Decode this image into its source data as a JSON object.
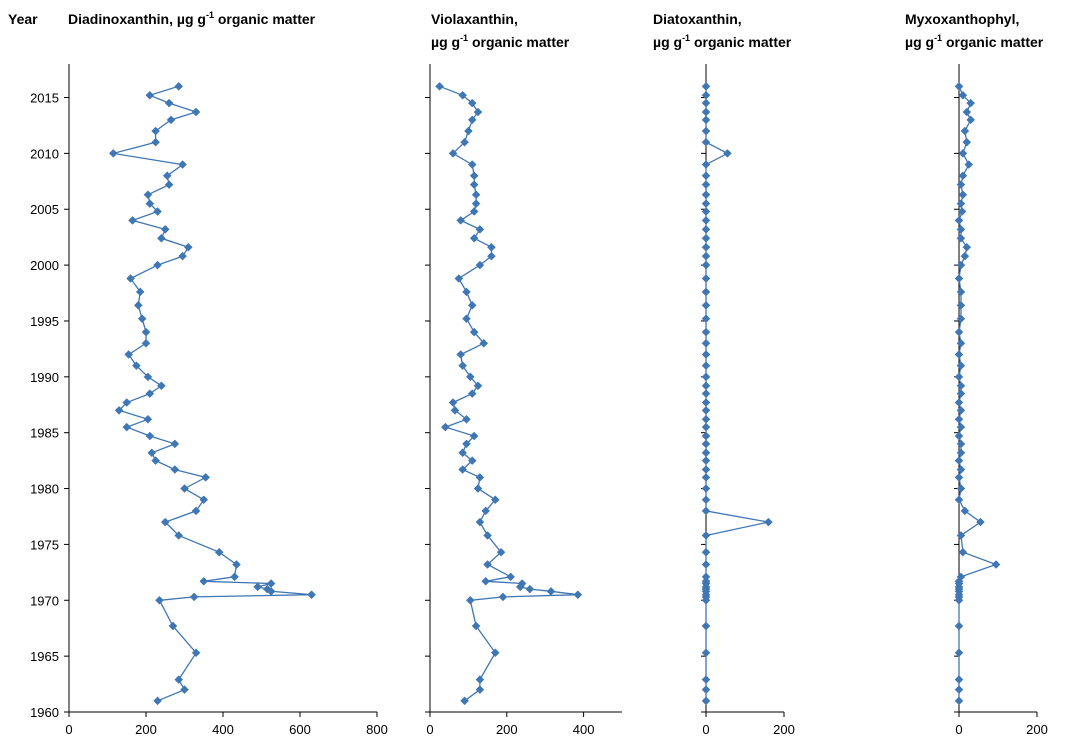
{
  "chart_data": [
    {
      "type": "line",
      "orientation": "depth-profile",
      "title": "Diadinoxanthin, µg g-1 organic matter",
      "title_parts": {
        "line1_pre": "Diadinoxanthin, µg g",
        "sup": "-1",
        "line1_post": " organic matter"
      },
      "xlim": [
        0,
        800
      ],
      "xticks": [
        0,
        200,
        400,
        600,
        800
      ],
      "ylim": [
        1960,
        2018
      ],
      "yticks": [
        1960,
        1965,
        1970,
        1975,
        1980,
        1985,
        1990,
        1995,
        2000,
        2005,
        2010,
        2015
      ],
      "y_axis_title": "Year",
      "points": [
        {
          "y": 2016,
          "x": 285
        },
        {
          "y": 2015.2,
          "x": 210
        },
        {
          "y": 2014.5,
          "x": 260
        },
        {
          "y": 2013.7,
          "x": 330
        },
        {
          "y": 2013,
          "x": 265
        },
        {
          "y": 2012,
          "x": 225
        },
        {
          "y": 2011,
          "x": 225
        },
        {
          "y": 2010,
          "x": 115
        },
        {
          "y": 2009,
          "x": 295
        },
        {
          "y": 2008,
          "x": 255
        },
        {
          "y": 2007.2,
          "x": 260
        },
        {
          "y": 2006.3,
          "x": 205
        },
        {
          "y": 2005.5,
          "x": 210
        },
        {
          "y": 2004.8,
          "x": 230
        },
        {
          "y": 2004,
          "x": 165
        },
        {
          "y": 2003.2,
          "x": 250
        },
        {
          "y": 2002.4,
          "x": 240
        },
        {
          "y": 2001.6,
          "x": 310
        },
        {
          "y": 2000.8,
          "x": 295
        },
        {
          "y": 2000,
          "x": 230
        },
        {
          "y": 1998.8,
          "x": 160
        },
        {
          "y": 1997.6,
          "x": 185
        },
        {
          "y": 1996.4,
          "x": 180
        },
        {
          "y": 1995.2,
          "x": 190
        },
        {
          "y": 1994,
          "x": 200
        },
        {
          "y": 1993,
          "x": 200
        },
        {
          "y": 1992,
          "x": 155
        },
        {
          "y": 1991,
          "x": 175
        },
        {
          "y": 1990,
          "x": 205
        },
        {
          "y": 1989.2,
          "x": 240
        },
        {
          "y": 1988.5,
          "x": 210
        },
        {
          "y": 1987.7,
          "x": 150
        },
        {
          "y": 1987,
          "x": 130
        },
        {
          "y": 1986.2,
          "x": 205
        },
        {
          "y": 1985.5,
          "x": 150
        },
        {
          "y": 1984.7,
          "x": 210
        },
        {
          "y": 1984,
          "x": 275
        },
        {
          "y": 1983.2,
          "x": 215
        },
        {
          "y": 1982.5,
          "x": 225
        },
        {
          "y": 1981.7,
          "x": 275
        },
        {
          "y": 1981,
          "x": 355
        },
        {
          "y": 1980,
          "x": 300
        },
        {
          "y": 1979,
          "x": 350
        },
        {
          "y": 1978,
          "x": 330
        },
        {
          "y": 1977,
          "x": 250
        },
        {
          "y": 1975.8,
          "x": 285
        },
        {
          "y": 1974.3,
          "x": 390
        },
        {
          "y": 1973.2,
          "x": 435
        },
        {
          "y": 1972.1,
          "x": 430
        },
        {
          "y": 1971.7,
          "x": 350
        },
        {
          "y": 1971.5,
          "x": 525
        },
        {
          "y": 1971.2,
          "x": 490
        },
        {
          "y": 1971,
          "x": 515
        },
        {
          "y": 1970.8,
          "x": 525
        },
        {
          "y": 1970.5,
          "x": 630
        },
        {
          "y": 1970.3,
          "x": 325
        },
        {
          "y": 1970,
          "x": 235
        },
        {
          "y": 1967.7,
          "x": 270
        },
        {
          "y": 1965.3,
          "x": 330
        },
        {
          "y": 1962.9,
          "x": 285
        },
        {
          "y": 1962,
          "x": 300
        },
        {
          "y": 1961,
          "x": 230
        }
      ]
    },
    {
      "type": "line",
      "orientation": "depth-profile",
      "title": "Violaxanthin, µg g-1 organic matter",
      "title_parts": {
        "line1": "Violaxanthin,",
        "line2_pre": "µg g",
        "sup": "-1",
        "line2_post": " organic matter"
      },
      "xlim": [
        0,
        500
      ],
      "xticks": [
        0,
        200,
        400
      ],
      "ylim": [
        1960,
        2018
      ],
      "points": [
        {
          "y": 2016,
          "x": 25
        },
        {
          "y": 2015.2,
          "x": 85
        },
        {
          "y": 2014.5,
          "x": 110
        },
        {
          "y": 2013.7,
          "x": 125
        },
        {
          "y": 2013,
          "x": 110
        },
        {
          "y": 2012,
          "x": 100
        },
        {
          "y": 2011,
          "x": 90
        },
        {
          "y": 2010,
          "x": 60
        },
        {
          "y": 2009,
          "x": 110
        },
        {
          "y": 2008,
          "x": 115
        },
        {
          "y": 2007.2,
          "x": 115
        },
        {
          "y": 2006.3,
          "x": 120
        },
        {
          "y": 2005.5,
          "x": 120
        },
        {
          "y": 2004.8,
          "x": 115
        },
        {
          "y": 2004,
          "x": 80
        },
        {
          "y": 2003.2,
          "x": 130
        },
        {
          "y": 2002.4,
          "x": 115
        },
        {
          "y": 2001.6,
          "x": 160
        },
        {
          "y": 2000.8,
          "x": 160
        },
        {
          "y": 2000,
          "x": 130
        },
        {
          "y": 1998.8,
          "x": 75
        },
        {
          "y": 1997.6,
          "x": 95
        },
        {
          "y": 1996.4,
          "x": 110
        },
        {
          "y": 1995.2,
          "x": 95
        },
        {
          "y": 1994,
          "x": 115
        },
        {
          "y": 1993,
          "x": 140
        },
        {
          "y": 1992,
          "x": 80
        },
        {
          "y": 1991,
          "x": 85
        },
        {
          "y": 1990,
          "x": 105
        },
        {
          "y": 1989.2,
          "x": 125
        },
        {
          "y": 1988.5,
          "x": 110
        },
        {
          "y": 1987.7,
          "x": 60
        },
        {
          "y": 1987,
          "x": 65
        },
        {
          "y": 1986.2,
          "x": 95
        },
        {
          "y": 1985.5,
          "x": 40
        },
        {
          "y": 1984.7,
          "x": 115
        },
        {
          "y": 1984,
          "x": 95
        },
        {
          "y": 1983.2,
          "x": 85
        },
        {
          "y": 1982.5,
          "x": 110
        },
        {
          "y": 1981.7,
          "x": 85
        },
        {
          "y": 1981,
          "x": 130
        },
        {
          "y": 1980,
          "x": 125
        },
        {
          "y": 1979,
          "x": 170
        },
        {
          "y": 1978,
          "x": 145
        },
        {
          "y": 1977,
          "x": 130
        },
        {
          "y": 1975.8,
          "x": 150
        },
        {
          "y": 1974.3,
          "x": 185
        },
        {
          "y": 1973.2,
          "x": 150
        },
        {
          "y": 1972.1,
          "x": 210
        },
        {
          "y": 1971.7,
          "x": 145
        },
        {
          "y": 1971.5,
          "x": 240
        },
        {
          "y": 1971.2,
          "x": 235
        },
        {
          "y": 1971,
          "x": 260
        },
        {
          "y": 1970.8,
          "x": 315
        },
        {
          "y": 1970.5,
          "x": 385
        },
        {
          "y": 1970.3,
          "x": 190
        },
        {
          "y": 1970,
          "x": 105
        },
        {
          "y": 1967.7,
          "x": 120
        },
        {
          "y": 1965.3,
          "x": 170
        },
        {
          "y": 1962.9,
          "x": 130
        },
        {
          "y": 1962,
          "x": 130
        },
        {
          "y": 1961,
          "x": 90
        }
      ]
    },
    {
      "type": "line",
      "orientation": "depth-profile",
      "title": "Diatoxanthin, µg g-1 organic matter",
      "title_parts": {
        "line1": "Diatoxanthin,",
        "line2_pre": "µg g",
        "sup": "-1",
        "line2_post": " organic matter"
      },
      "xlim": [
        0,
        200
      ],
      "xticks": [
        0,
        200
      ],
      "ylim": [
        1960,
        2018
      ],
      "points": [
        {
          "y": 2016,
          "x": 0
        },
        {
          "y": 2015.2,
          "x": 0
        },
        {
          "y": 2014.5,
          "x": 0
        },
        {
          "y": 2013.7,
          "x": 0
        },
        {
          "y": 2013,
          "x": 0
        },
        {
          "y": 2012,
          "x": 0
        },
        {
          "y": 2011,
          "x": 0
        },
        {
          "y": 2010,
          "x": 55
        },
        {
          "y": 2009,
          "x": 0
        },
        {
          "y": 2008,
          "x": 0
        },
        {
          "y": 2007.2,
          "x": 0
        },
        {
          "y": 2006.3,
          "x": 0
        },
        {
          "y": 2005.5,
          "x": 0
        },
        {
          "y": 2004.8,
          "x": 0
        },
        {
          "y": 2004,
          "x": 0
        },
        {
          "y": 2003.2,
          "x": 0
        },
        {
          "y": 2002.4,
          "x": 0
        },
        {
          "y": 2001.6,
          "x": 0
        },
        {
          "y": 2000.8,
          "x": 0
        },
        {
          "y": 2000,
          "x": 0
        },
        {
          "y": 1998.8,
          "x": 0
        },
        {
          "y": 1997.6,
          "x": 0
        },
        {
          "y": 1996.4,
          "x": 0
        },
        {
          "y": 1995.2,
          "x": 0
        },
        {
          "y": 1994,
          "x": 0
        },
        {
          "y": 1993,
          "x": 0
        },
        {
          "y": 1992,
          "x": 0
        },
        {
          "y": 1991,
          "x": 0
        },
        {
          "y": 1990,
          "x": 0
        },
        {
          "y": 1989.2,
          "x": 0
        },
        {
          "y": 1988.5,
          "x": 0
        },
        {
          "y": 1987.7,
          "x": 0
        },
        {
          "y": 1987,
          "x": 0
        },
        {
          "y": 1986.2,
          "x": 0
        },
        {
          "y": 1985.5,
          "x": 0
        },
        {
          "y": 1984.7,
          "x": 0
        },
        {
          "y": 1984,
          "x": 0
        },
        {
          "y": 1983.2,
          "x": 0
        },
        {
          "y": 1982.5,
          "x": 0
        },
        {
          "y": 1981.7,
          "x": 0
        },
        {
          "y": 1981,
          "x": 0
        },
        {
          "y": 1980,
          "x": 0
        },
        {
          "y": 1979,
          "x": 0
        },
        {
          "y": 1978,
          "x": 0
        },
        {
          "y": 1977,
          "x": 160
        },
        {
          "y": 1975.8,
          "x": 0
        },
        {
          "y": 1974.3,
          "x": 0
        },
        {
          "y": 1973.2,
          "x": 0
        },
        {
          "y": 1972.1,
          "x": 0
        },
        {
          "y": 1971.7,
          "x": 0
        },
        {
          "y": 1971.5,
          "x": 0
        },
        {
          "y": 1971.2,
          "x": 0
        },
        {
          "y": 1971,
          "x": 0
        },
        {
          "y": 1970.8,
          "x": 0
        },
        {
          "y": 1970.5,
          "x": 0
        },
        {
          "y": 1970.3,
          "x": 0
        },
        {
          "y": 1970,
          "x": 0
        },
        {
          "y": 1967.7,
          "x": 0
        },
        {
          "y": 1965.3,
          "x": 0
        },
        {
          "y": 1962.9,
          "x": 0
        },
        {
          "y": 1962,
          "x": 0
        },
        {
          "y": 1961,
          "x": 0
        }
      ]
    },
    {
      "type": "line",
      "orientation": "depth-profile",
      "title": "Myxoxanthophyl, µg g-1 organic matter",
      "title_parts": {
        "line1": "Myxoxanthophyl,",
        "line2_pre": "µg g",
        "sup": "-1",
        "line2_post": " organic matter"
      },
      "xlim": [
        0,
        200
      ],
      "xticks": [
        0,
        200
      ],
      "ylim": [
        1960,
        2018
      ],
      "points": [
        {
          "y": 2016,
          "x": 0
        },
        {
          "y": 2015.2,
          "x": 10
        },
        {
          "y": 2014.5,
          "x": 30
        },
        {
          "y": 2013.7,
          "x": 20
        },
        {
          "y": 2013,
          "x": 30
        },
        {
          "y": 2012,
          "x": 15
        },
        {
          "y": 2011,
          "x": 20
        },
        {
          "y": 2010,
          "x": 10
        },
        {
          "y": 2009,
          "x": 25
        },
        {
          "y": 2008,
          "x": 10
        },
        {
          "y": 2007.2,
          "x": 5
        },
        {
          "y": 2006.3,
          "x": 10
        },
        {
          "y": 2005.5,
          "x": 5
        },
        {
          "y": 2004.8,
          "x": 8
        },
        {
          "y": 2004,
          "x": 0
        },
        {
          "y": 2003.2,
          "x": 5
        },
        {
          "y": 2002.4,
          "x": 5
        },
        {
          "y": 2001.6,
          "x": 20
        },
        {
          "y": 2000.8,
          "x": 15
        },
        {
          "y": 2000,
          "x": 5
        },
        {
          "y": 1998.8,
          "x": 0
        },
        {
          "y": 1997.6,
          "x": 5
        },
        {
          "y": 1996.4,
          "x": 5
        },
        {
          "y": 1995.2,
          "x": 5
        },
        {
          "y": 1994,
          "x": 0
        },
        {
          "y": 1993,
          "x": 5
        },
        {
          "y": 1992,
          "x": 0
        },
        {
          "y": 1991,
          "x": 5
        },
        {
          "y": 1990,
          "x": 0
        },
        {
          "y": 1989.2,
          "x": 5
        },
        {
          "y": 1988.5,
          "x": 5
        },
        {
          "y": 1987.7,
          "x": 0
        },
        {
          "y": 1987,
          "x": 5
        },
        {
          "y": 1986.2,
          "x": 0
        },
        {
          "y": 1985.5,
          "x": 5
        },
        {
          "y": 1984.7,
          "x": 0
        },
        {
          "y": 1984,
          "x": 5
        },
        {
          "y": 1983.2,
          "x": 5
        },
        {
          "y": 1982.5,
          "x": 0
        },
        {
          "y": 1981.7,
          "x": 5
        },
        {
          "y": 1981,
          "x": 0
        },
        {
          "y": 1980,
          "x": 5
        },
        {
          "y": 1979,
          "x": 0
        },
        {
          "y": 1978,
          "x": 15
        },
        {
          "y": 1977,
          "x": 55
        },
        {
          "y": 1975.8,
          "x": 5
        },
        {
          "y": 1974.3,
          "x": 10
        },
        {
          "y": 1973.2,
          "x": 95
        },
        {
          "y": 1972.1,
          "x": 5
        },
        {
          "y": 1971.7,
          "x": 0
        },
        {
          "y": 1971.5,
          "x": 0
        },
        {
          "y": 1971.2,
          "x": 0
        },
        {
          "y": 1971,
          "x": 0
        },
        {
          "y": 1970.8,
          "x": 0
        },
        {
          "y": 1970.5,
          "x": 0
        },
        {
          "y": 1970.3,
          "x": 0
        },
        {
          "y": 1970,
          "x": 0
        },
        {
          "y": 1967.7,
          "x": 0
        },
        {
          "y": 1965.3,
          "x": 0
        },
        {
          "y": 1962.9,
          "x": 0
        },
        {
          "y": 1962,
          "x": 0
        },
        {
          "y": 1961,
          "x": 0
        }
      ]
    }
  ],
  "colors": {
    "series": "#3F76B4",
    "axis": "#000000"
  }
}
